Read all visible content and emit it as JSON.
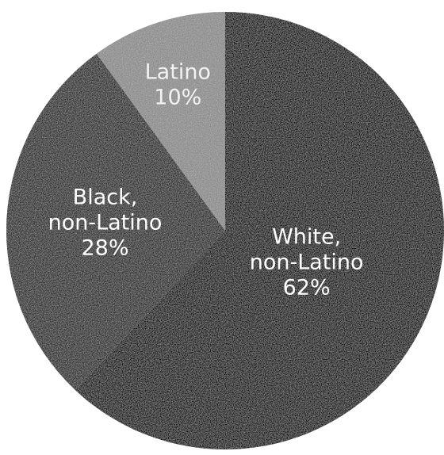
{
  "chart_data": {
    "type": "pie",
    "slices": [
      {
        "lines": [
          "White,",
          "non-Latino"
        ],
        "value_label": "62%",
        "value": 62,
        "color": "#0a0a0a",
        "text_color": "#ffffff"
      },
      {
        "lines": [
          "Black,",
          "non-Latino"
        ],
        "value_label": "28%",
        "value": 28,
        "color": "#2a2a2a",
        "text_color": "#ffffff"
      },
      {
        "lines": [
          "Latino"
        ],
        "value_label": "10%",
        "value": 10,
        "color": "#8a8a8a",
        "text_color": "#f2f2f2"
      }
    ],
    "start_angle_deg": 0,
    "direction": "clockwise"
  }
}
